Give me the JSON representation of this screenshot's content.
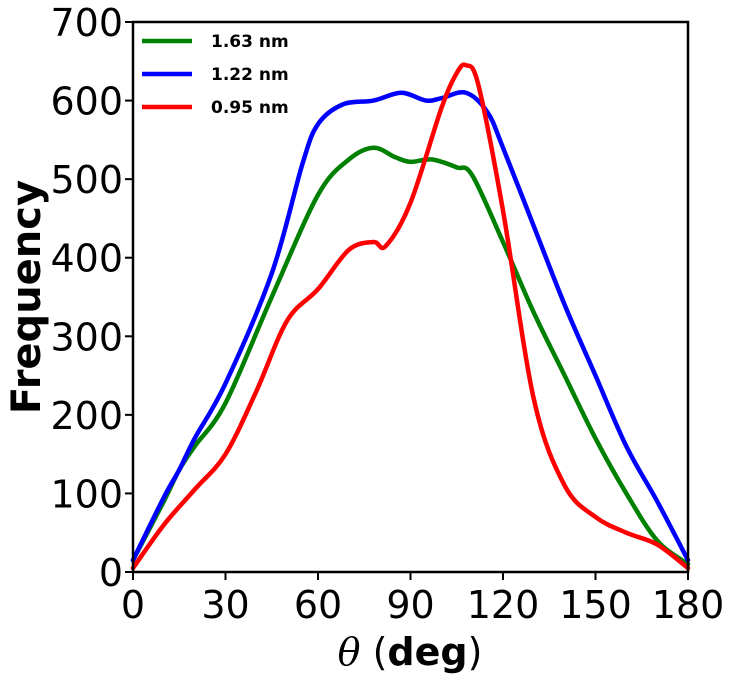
{
  "chart_data": {
    "type": "line",
    "title": "",
    "xlabel": "θ (deg)",
    "xlabel_symbol": "θ",
    "xlabel_unit": "deg",
    "ylabel": "Frequency",
    "xlim": [
      0,
      180
    ],
    "ylim": [
      0,
      700
    ],
    "xticks": [
      0,
      30,
      60,
      90,
      120,
      150,
      180
    ],
    "yticks": [
      0,
      100,
      200,
      300,
      400,
      500,
      600,
      700
    ],
    "grid": false,
    "legend_position": "upper left",
    "series": [
      {
        "name": "1.63 nm",
        "color": "#008000",
        "x": [
          0,
          10,
          15,
          20,
          30,
          45,
          60,
          70,
          78,
          85,
          90,
          97,
          105,
          110,
          120,
          130,
          140,
          150,
          160,
          170,
          180
        ],
        "values": [
          15,
          90,
          130,
          160,
          215,
          350,
          480,
          525,
          540,
          528,
          522,
          525,
          515,
          505,
          420,
          330,
          250,
          170,
          100,
          40,
          10
        ]
      },
      {
        "name": "1.22 nm",
        "color": "#0000ff",
        "x": [
          0,
          10,
          15,
          20,
          30,
          45,
          55,
          60,
          68,
          78,
          87,
          95,
          100,
          108,
          115,
          120,
          130,
          140,
          150,
          160,
          170,
          180
        ],
        "values": [
          15,
          95,
          130,
          170,
          240,
          380,
          520,
          570,
          595,
          600,
          610,
          600,
          603,
          610,
          585,
          540,
          440,
          340,
          250,
          160,
          90,
          15
        ]
      },
      {
        "name": "0.95 nm",
        "color": "#ff0000",
        "x": [
          0,
          10,
          20,
          30,
          40,
          50,
          60,
          70,
          78,
          82,
          90,
          100,
          105,
          108,
          112,
          120,
          130,
          140,
          150,
          160,
          170,
          180
        ],
        "values": [
          5,
          60,
          105,
          150,
          230,
          320,
          360,
          410,
          420,
          415,
          470,
          590,
          635,
          645,
          620,
          460,
          220,
          110,
          70,
          50,
          35,
          5
        ]
      }
    ]
  }
}
